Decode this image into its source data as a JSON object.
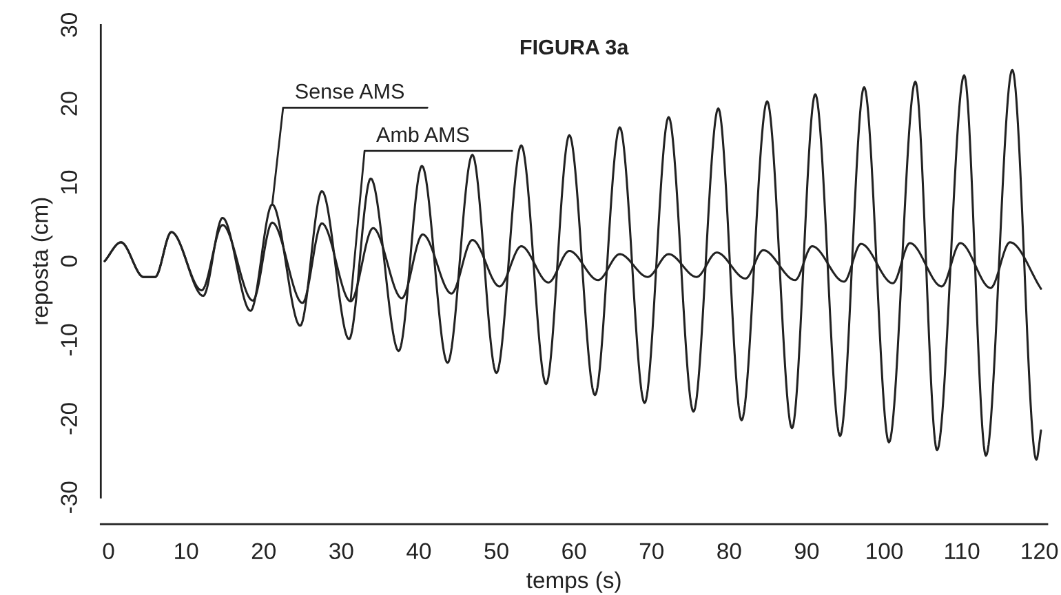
{
  "chart_data": {
    "type": "line",
    "title": "FIGURA 3a",
    "xlabel": "temps (s)",
    "ylabel": "reposta (cm)",
    "xlim": [
      -1,
      121
    ],
    "ylim": [
      -30,
      30
    ],
    "xticks": [
      0,
      10,
      20,
      30,
      40,
      50,
      60,
      70,
      80,
      90,
      100,
      110,
      120
    ],
    "yticks": [
      -30,
      -20,
      -10,
      0,
      10,
      20,
      30
    ],
    "series": [
      {
        "color": "#222222",
        "x": [
          -0.5,
          1.6,
          4.5,
          6.0,
          8.1,
          12.2,
          14.7,
          18.3,
          21.1,
          24.7,
          27.5,
          31.0,
          33.8,
          37.4,
          40.4,
          43.7,
          46.9,
          50.0,
          53.2,
          56.4,
          59.4,
          62.7,
          65.9,
          69.1,
          72.2,
          75.4,
          78.6,
          81.6,
          84.9,
          88.1,
          91.1,
          94.3,
          97.4,
          100.6,
          104.0,
          106.8,
          110.3,
          113.1,
          116.5,
          119.6,
          120.2
        ],
        "values": [
          0,
          2.4,
          -2.0,
          -2.0,
          3.7,
          -4.4,
          5.5,
          -6.3,
          7.2,
          -8.2,
          8.9,
          -9.9,
          10.5,
          -11.4,
          12.1,
          -12.9,
          13.5,
          -14.2,
          14.7,
          -15.6,
          16.0,
          -17.0,
          17.0,
          -18.0,
          18.3,
          -19.1,
          19.4,
          -20.2,
          20.3,
          -21.2,
          21.2,
          -22.2,
          22.1,
          -23.0,
          22.8,
          -24.0,
          23.6,
          -24.7,
          24.3,
          -25.2,
          -21.5
        ]
      },
      {
        "color": "#222222",
        "x": [
          -0.5,
          1.6,
          4.5,
          6.0,
          8.1,
          12.0,
          14.7,
          18.6,
          21.1,
          25.0,
          27.5,
          31.2,
          34.1,
          37.8,
          40.5,
          44.2,
          46.9,
          50.4,
          53.2,
          56.7,
          59.4,
          63.1,
          65.9,
          69.5,
          72.2,
          75.8,
          78.4,
          82.1,
          84.4,
          88.5,
          90.7,
          94.8,
          97.0,
          101.1,
          103.3,
          107.4,
          109.8,
          113.7,
          116.2,
          120.2
        ],
        "values": [
          0,
          2.4,
          -2.0,
          -2.0,
          3.7,
          -3.7,
          4.6,
          -5.0,
          4.9,
          -5.3,
          4.8,
          -5.1,
          4.2,
          -4.7,
          3.4,
          -4.1,
          2.7,
          -3.2,
          1.9,
          -2.7,
          1.3,
          -2.4,
          0.9,
          -2.0,
          0.9,
          -2.0,
          1.1,
          -2.2,
          1.4,
          -2.4,
          1.9,
          -2.6,
          2.2,
          -2.8,
          2.3,
          -3.2,
          2.3,
          -3.4,
          2.4,
          -3.5
        ]
      }
    ],
    "annotations": [
      {
        "text": "Sense AMS",
        "x": 21.1,
        "y": 7.2
      },
      {
        "text": "Amb AMS",
        "x": 31.2,
        "y": -5.1
      }
    ]
  }
}
